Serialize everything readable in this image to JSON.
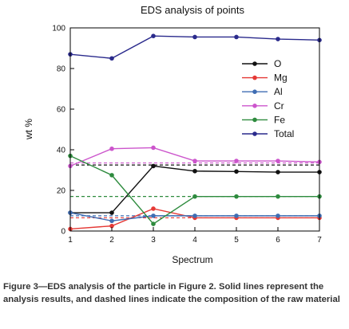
{
  "chart_data": {
    "type": "line",
    "title": "EDS analysis of points",
    "xlabel": "Spectrum",
    "ylabel": "wt %",
    "x": [
      1,
      2,
      3,
      4,
      5,
      6,
      7
    ],
    "xlim": [
      1,
      7
    ],
    "ylim": [
      0,
      100
    ],
    "xticks": [
      "1",
      "2",
      "3",
      "4",
      "5",
      "6",
      "7"
    ],
    "yticks": [
      "0",
      "20",
      "40",
      "60",
      "80",
      "100"
    ],
    "grid": false,
    "legend_position": "right",
    "series": [
      {
        "name": "O",
        "color": "#111111",
        "values": [
          9,
          9,
          32,
          29.5,
          29.3,
          29,
          29
        ],
        "reference": 32.5
      },
      {
        "name": "Mg",
        "color": "#e53935",
        "values": [
          1,
          2.5,
          11,
          6.5,
          6.5,
          6.5,
          6.5
        ],
        "reference": 6.5
      },
      {
        "name": "Al",
        "color": "#3f6db3",
        "values": [
          9,
          5,
          7.5,
          7.5,
          7.5,
          7.5,
          7.5
        ],
        "reference": 7.5
      },
      {
        "name": "Cr",
        "color": "#cc55cc",
        "values": [
          32,
          40.5,
          41,
          34.5,
          34.5,
          34.5,
          34
        ],
        "reference": 33.5
      },
      {
        "name": "Fe",
        "color": "#2e8b3e",
        "values": [
          37,
          27.5,
          3.5,
          17,
          17,
          17,
          17
        ],
        "reference": 17
      },
      {
        "name": "Total",
        "color": "#2a2a8c",
        "values": [
          87,
          85,
          96,
          95.5,
          95.5,
          94.5,
          94
        ],
        "reference": null
      }
    ]
  },
  "caption": "Figure 3—EDS analysis of the particle in Figure 2. Solid lines represent the analysis results, and dashed lines indicate the composition of the raw material"
}
